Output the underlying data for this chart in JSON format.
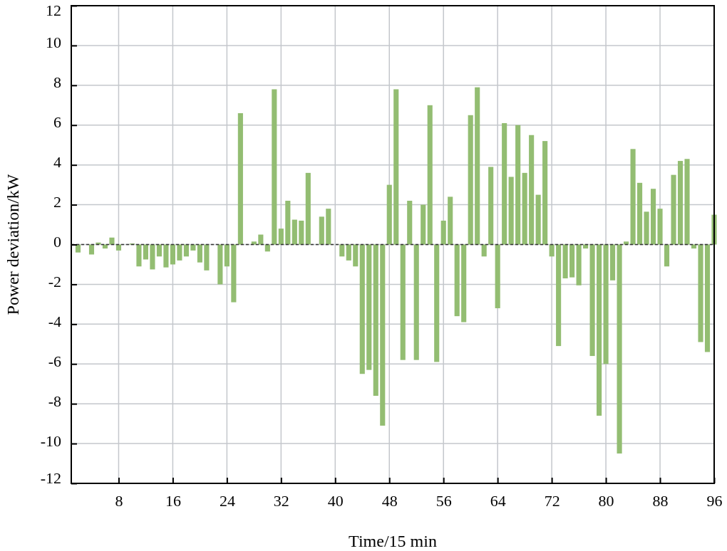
{
  "chart_data": {
    "type": "bar",
    "xlabel": "Time/15 min",
    "ylabel": "Power deviation/kW",
    "x": [
      1,
      2,
      3,
      4,
      5,
      6,
      7,
      8,
      9,
      10,
      11,
      12,
      13,
      14,
      15,
      16,
      17,
      18,
      19,
      20,
      21,
      22,
      23,
      24,
      25,
      26,
      27,
      28,
      29,
      30,
      31,
      32,
      33,
      34,
      35,
      36,
      37,
      38,
      39,
      40,
      41,
      42,
      43,
      44,
      45,
      46,
      47,
      48,
      49,
      50,
      51,
      52,
      53,
      54,
      55,
      56,
      57,
      58,
      59,
      60,
      61,
      62,
      63,
      64,
      65,
      66,
      67,
      68,
      69,
      70,
      71,
      72,
      73,
      74,
      75,
      76,
      77,
      78,
      79,
      80,
      81,
      82,
      83,
      84,
      85,
      86,
      87,
      88,
      89,
      90,
      91,
      92,
      93,
      94,
      95,
      96
    ],
    "values": [
      0,
      -0.4,
      0,
      -0.5,
      0.1,
      -0.2,
      0.35,
      -0.3,
      0,
      0.05,
      -1.1,
      -0.75,
      -1.25,
      -0.6,
      -1.15,
      -1.0,
      -0.8,
      -0.6,
      -0.3,
      -0.9,
      -1.3,
      0,
      -2.0,
      -1.1,
      -2.9,
      6.6,
      0,
      0.15,
      0.5,
      -0.35,
      7.8,
      0.8,
      2.2,
      1.25,
      1.2,
      3.6,
      0,
      1.4,
      1.8,
      0,
      -0.6,
      -0.8,
      -1.1,
      -6.5,
      -6.3,
      -7.6,
      -9.1,
      3.0,
      7.8,
      -5.8,
      2.2,
      -5.8,
      2.0,
      7.0,
      -5.9,
      1.2,
      2.4,
      -3.6,
      -3.9,
      6.5,
      7.9,
      -0.6,
      3.9,
      -3.2,
      6.1,
      3.4,
      6.0,
      3.6,
      5.5,
      2.5,
      5.2,
      -0.6,
      -5.1,
      -1.7,
      -1.65,
      -2.05,
      -0.2,
      -5.6,
      -8.6,
      -6.0,
      -1.8,
      -10.5,
      0.15,
      4.8,
      3.1,
      1.65,
      2.8,
      1.8,
      -1.1,
      3.5,
      4.2,
      4.3,
      -0.2,
      -4.9,
      -5.4,
      1.5
    ],
    "color": "#93bd72",
    "xlim": [
      1,
      96
    ],
    "xticks": [
      8,
      16,
      24,
      32,
      40,
      48,
      56,
      64,
      72,
      80,
      88,
      96
    ],
    "ylim": [
      -12,
      12
    ],
    "yticks": [
      -12,
      -10,
      -8,
      -6,
      -4,
      -2,
      0,
      2,
      4,
      6,
      8,
      10,
      12
    ],
    "grid": true,
    "ref_lines": [
      {
        "axis": "y",
        "value": 0,
        "color": "#333333",
        "line_style": "dashed"
      }
    ]
  }
}
